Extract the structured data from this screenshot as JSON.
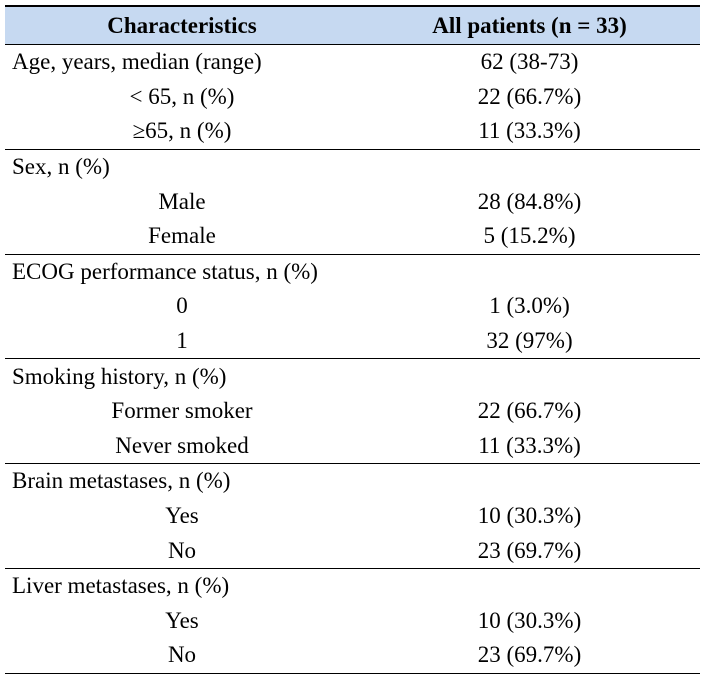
{
  "table": {
    "header": [
      "Characteristics",
      "All patients (n = 33)"
    ],
    "groups": [
      {
        "label": "Age, years, median (range)",
        "value": "62 (38-73)",
        "items": [
          {
            "label": "< 65, n (%)",
            "value": "22 (66.7%)"
          },
          {
            "label": "≥65, n (%)",
            "value": "11 (33.3%)"
          }
        ]
      },
      {
        "label": "Sex, n (%)",
        "items": [
          {
            "label": "Male",
            "value": "28 (84.8%)"
          },
          {
            "label": "Female",
            "value": "5 (15.2%)"
          }
        ]
      },
      {
        "label": "ECOG performance status, n (%)",
        "items": [
          {
            "label": "0",
            "value": "1 (3.0%)"
          },
          {
            "label": "1",
            "value": "32 (97%)"
          }
        ]
      },
      {
        "label": "Smoking history, n (%)",
        "items": [
          {
            "label": "Former smoker",
            "value": "22 (66.7%)"
          },
          {
            "label": "Never smoked",
            "value": "11 (33.3%)"
          }
        ]
      },
      {
        "label": "Brain metastases, n (%)",
        "items": [
          {
            "label": "Yes",
            "value": "10 (30.3%)"
          },
          {
            "label": "No",
            "value": "23 (69.7%)"
          }
        ]
      },
      {
        "label": "Liver metastases, n (%)",
        "items": [
          {
            "label": "Yes",
            "value": "10 (30.3%)"
          },
          {
            "label": "No",
            "value": "23 (69.7%)"
          }
        ]
      }
    ]
  }
}
